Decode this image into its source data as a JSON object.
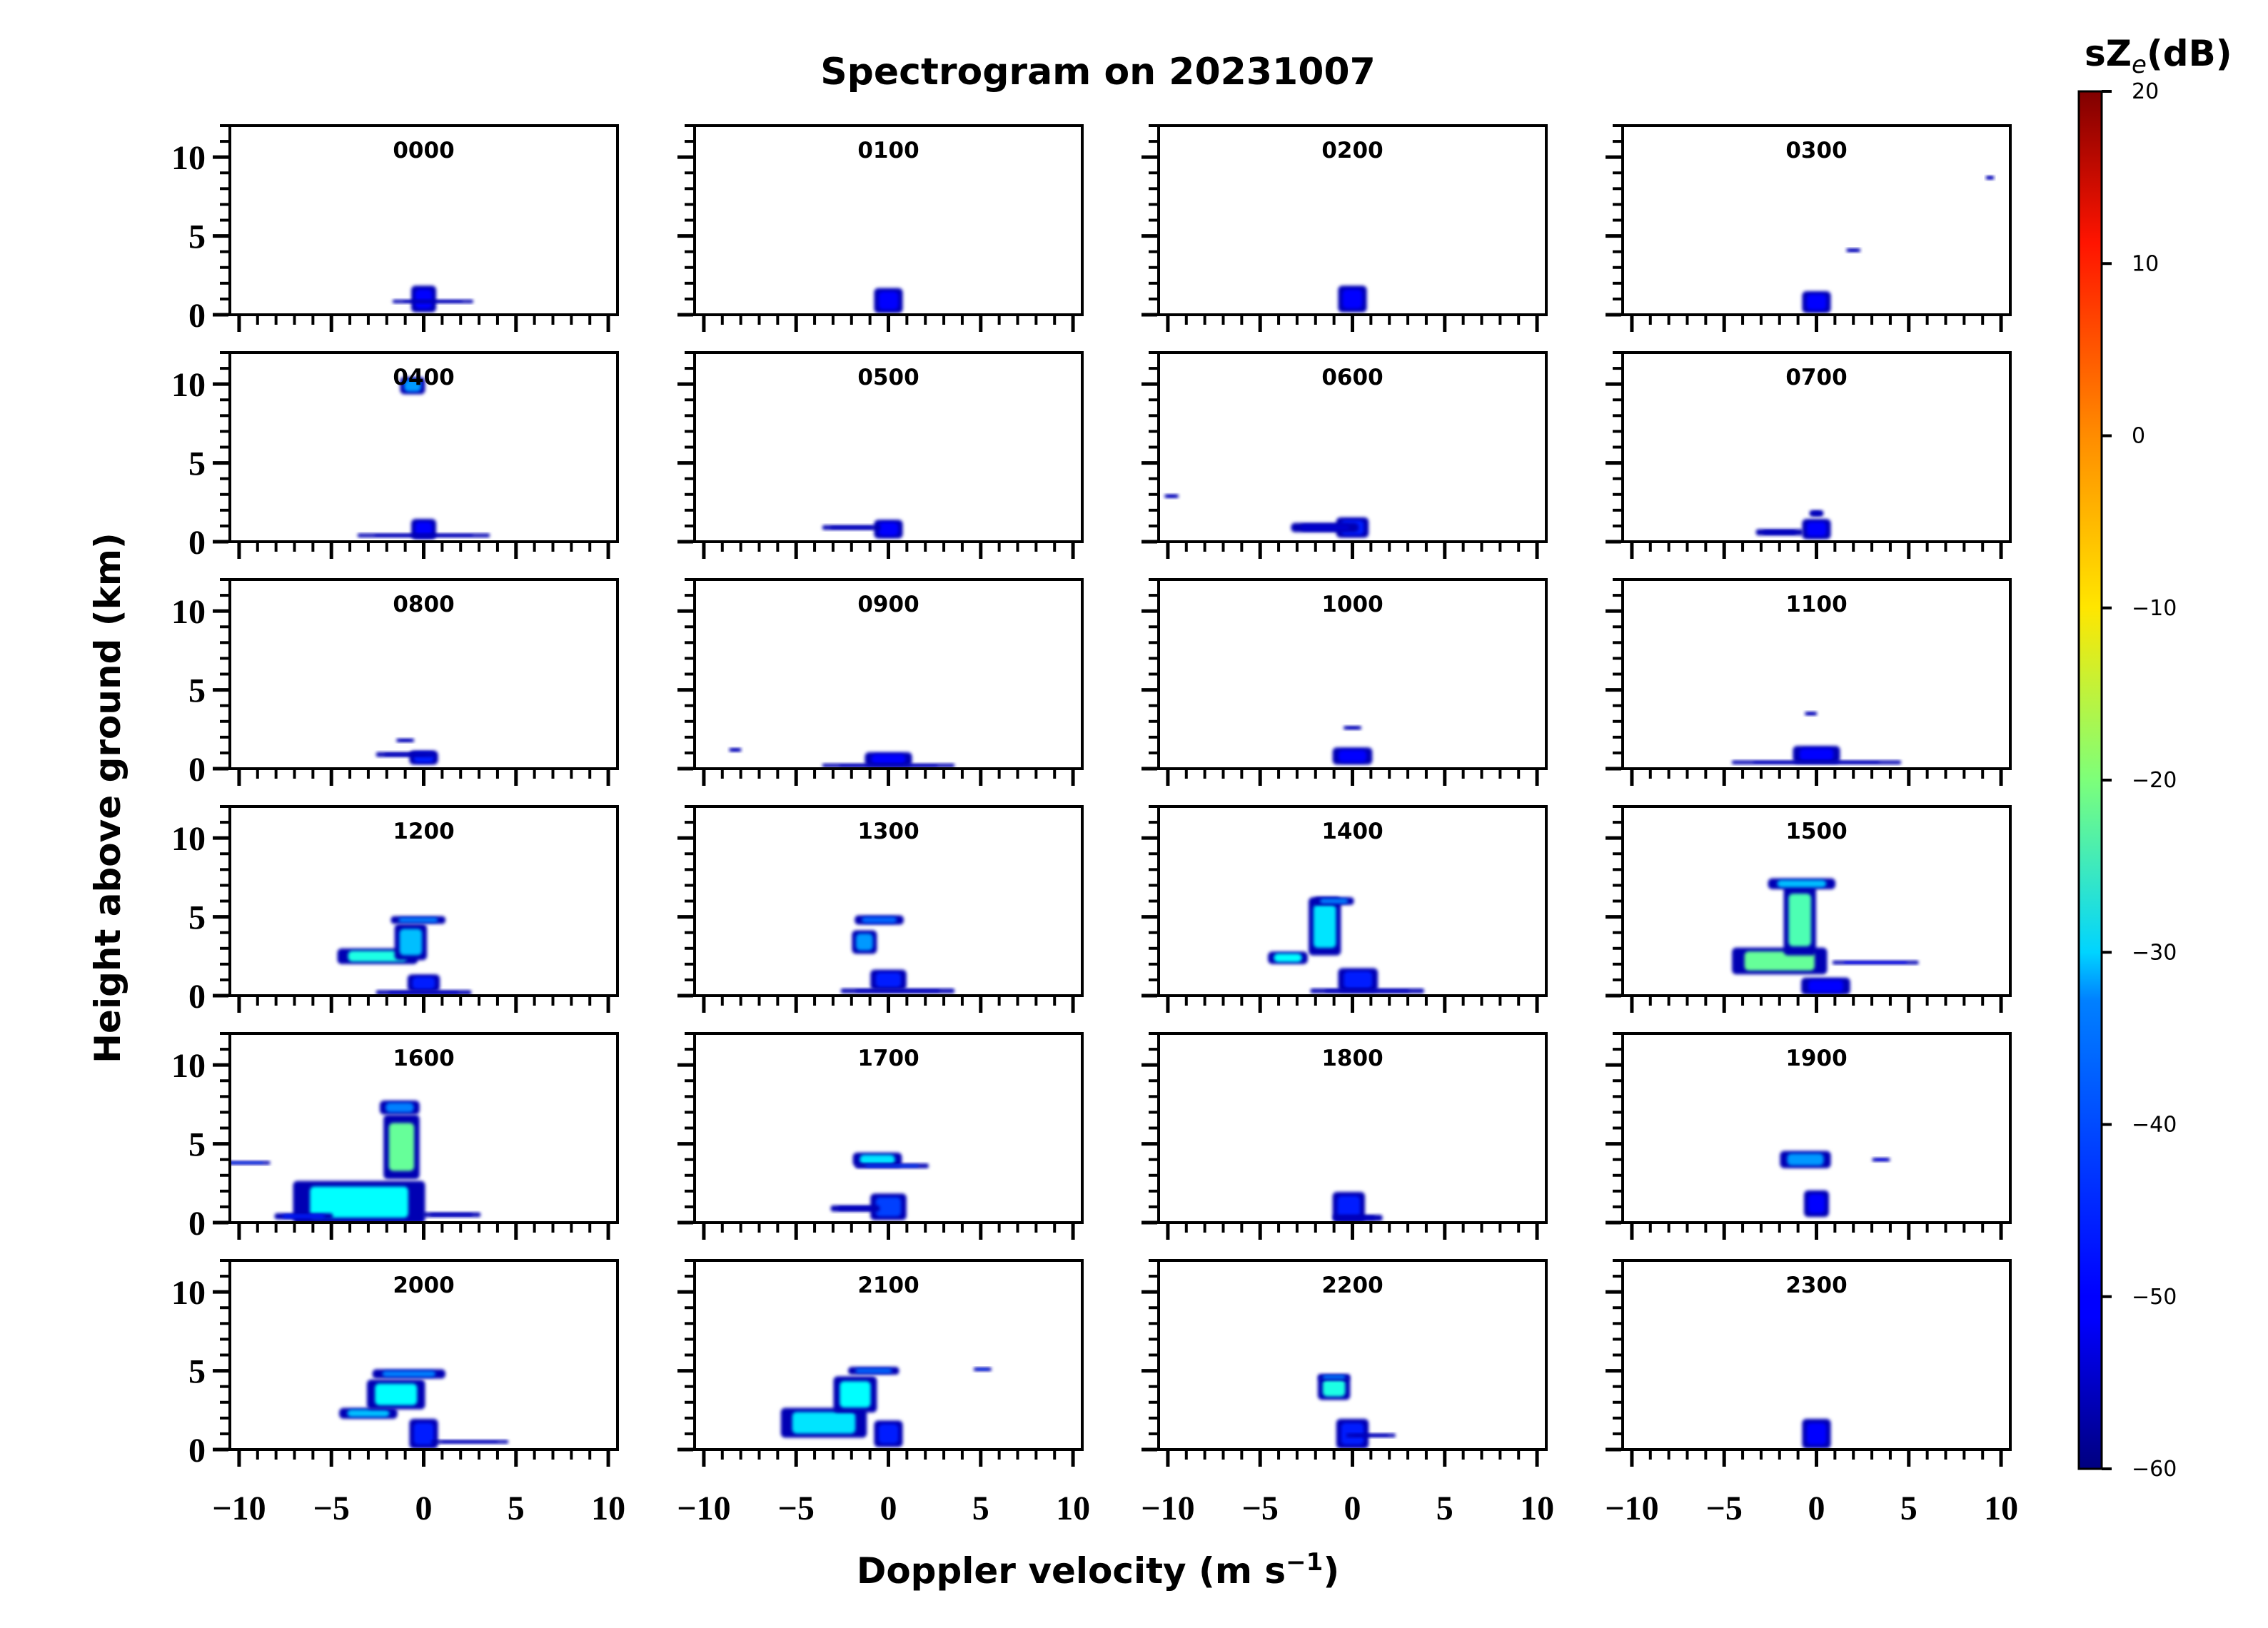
{
  "chart_data": {
    "type": "heatmap",
    "title": "Spectrogram on 20231007",
    "xlabel": "Doppler velocity (m s",
    "xlabel_exp": "−1",
    "xlabel_close": ")",
    "ylabel": "Height above ground (km)",
    "xlim": [
      -10.5,
      10.5
    ],
    "ylim": [
      0,
      12
    ],
    "x_ticks": [
      -10,
      -5,
      0,
      5,
      10
    ],
    "x_tick_labels": [
      "−10",
      "−5",
      "0",
      "5",
      "10"
    ],
    "y_ticks": [
      0,
      5,
      10
    ],
    "y_tick_labels": [
      "0",
      "5",
      "10"
    ],
    "colorbar": {
      "label_prefix": "sZ",
      "label_sub": "e",
      "label_suffix": "(dB)",
      "range": [
        -60,
        20
      ],
      "ticks": [
        20,
        10,
        0,
        -10,
        -20,
        -30,
        -40,
        -50,
        -60
      ],
      "tick_labels": [
        "20",
        "10",
        "0",
        "−10",
        "−20",
        "−30",
        "−40",
        "−50",
        "−60"
      ],
      "colormap": "jet"
    },
    "panels": [
      {
        "time": "0000",
        "blobs": [
          {
            "v": 0,
            "h": 1.0,
            "w": 1.2,
            "hh": 1.6,
            "db": -50
          },
          {
            "v": 0.5,
            "h": 0.85,
            "w": 4.2,
            "hh": 0.12,
            "db": -55
          }
        ]
      },
      {
        "time": "0100",
        "blobs": [
          {
            "v": 0,
            "h": 0.9,
            "w": 1.4,
            "hh": 1.5,
            "db": -50
          }
        ]
      },
      {
        "time": "0200",
        "blobs": [
          {
            "v": 0,
            "h": 1.0,
            "w": 1.4,
            "hh": 1.6,
            "db": -50
          }
        ]
      },
      {
        "time": "0300",
        "blobs": [
          {
            "v": 0,
            "h": 0.8,
            "w": 1.4,
            "hh": 1.3,
            "db": -50
          },
          {
            "v": 2.0,
            "h": 4.1,
            "w": 0.6,
            "hh": 0.12,
            "db": -55
          },
          {
            "v": 9.4,
            "h": 8.7,
            "w": 0.3,
            "hh": 0.12,
            "db": -55
          }
        ]
      },
      {
        "time": "0400",
        "blobs": [
          {
            "v": -0.6,
            "h": 9.9,
            "w": 1.2,
            "hh": 1.0,
            "db": -38
          },
          {
            "v": 0,
            "h": 0.8,
            "w": 1.2,
            "hh": 1.2,
            "db": -50
          },
          {
            "v": 0,
            "h": 0.4,
            "w": 7.0,
            "hh": 0.15,
            "db": -55
          }
        ]
      },
      {
        "time": "0500",
        "blobs": [
          {
            "v": 0,
            "h": 0.8,
            "w": 1.4,
            "hh": 1.1,
            "db": -50
          },
          {
            "v": -2.0,
            "h": 0.9,
            "w": 3.0,
            "hh": 0.2,
            "db": -55
          }
        ]
      },
      {
        "time": "0600",
        "blobs": [
          {
            "v": 0,
            "h": 0.9,
            "w": 1.6,
            "hh": 1.2,
            "db": -48
          },
          {
            "v": -1.5,
            "h": 0.9,
            "w": 3.5,
            "hh": 0.5,
            "db": -54
          },
          {
            "v": -9.8,
            "h": 2.9,
            "w": 0.6,
            "hh": 0.12,
            "db": -55
          }
        ]
      },
      {
        "time": "0700",
        "blobs": [
          {
            "v": 0,
            "h": 0.8,
            "w": 1.4,
            "hh": 1.2,
            "db": -50
          },
          {
            "v": 0,
            "h": 1.8,
            "w": 0.6,
            "hh": 0.3,
            "db": -55
          },
          {
            "v": -2.0,
            "h": 0.6,
            "w": 2.4,
            "hh": 0.3,
            "db": -55
          }
        ]
      },
      {
        "time": "0800",
        "blobs": [
          {
            "v": 0,
            "h": 0.7,
            "w": 1.4,
            "hh": 0.8,
            "db": -48
          },
          {
            "v": -1.0,
            "h": 0.9,
            "w": 3.0,
            "hh": 0.2,
            "db": -55
          },
          {
            "v": -1.0,
            "h": 1.8,
            "w": 0.8,
            "hh": 0.12,
            "db": -55
          }
        ]
      },
      {
        "time": "0900",
        "blobs": [
          {
            "v": 0,
            "h": 0.6,
            "w": 2.4,
            "hh": 0.8,
            "db": -50
          },
          {
            "v": 0,
            "h": 0.2,
            "w": 7.0,
            "hh": 0.15,
            "db": -55
          },
          {
            "v": -8.3,
            "h": 1.2,
            "w": 0.5,
            "hh": 0.12,
            "db": -55
          }
        ]
      },
      {
        "time": "1000",
        "blobs": [
          {
            "v": 0,
            "h": 0.8,
            "w": 2.0,
            "hh": 1.0,
            "db": -50
          },
          {
            "v": 0,
            "h": 2.6,
            "w": 0.8,
            "hh": 0.12,
            "db": -55
          }
        ]
      },
      {
        "time": "1100",
        "blobs": [
          {
            "v": 0,
            "h": 0.9,
            "w": 2.4,
            "hh": 1.0,
            "db": -50
          },
          {
            "v": 0,
            "h": 0.4,
            "w": 9.0,
            "hh": 0.15,
            "db": -55
          },
          {
            "v": -0.3,
            "h": 3.5,
            "w": 0.5,
            "hh": 0.12,
            "db": -55
          }
        ]
      },
      {
        "time": "1200",
        "blobs": [
          {
            "v": -2.5,
            "h": 2.5,
            "w": 4.2,
            "hh": 0.9,
            "db": -28
          },
          {
            "v": -0.7,
            "h": 3.4,
            "w": 1.6,
            "hh": 2.2,
            "db": -35
          },
          {
            "v": -0.3,
            "h": 4.8,
            "w": 2.8,
            "hh": 0.4,
            "db": -40
          },
          {
            "v": 0,
            "h": 0.8,
            "w": 1.6,
            "hh": 1.0,
            "db": -48
          },
          {
            "v": 0,
            "h": 0.2,
            "w": 5.0,
            "hh": 0.2,
            "db": -55
          }
        ]
      },
      {
        "time": "1300",
        "blobs": [
          {
            "v": -1.3,
            "h": 3.4,
            "w": 1.2,
            "hh": 1.4,
            "db": -38
          },
          {
            "v": -0.5,
            "h": 4.8,
            "w": 2.5,
            "hh": 0.5,
            "db": -42
          },
          {
            "v": 0,
            "h": 1.0,
            "w": 1.8,
            "hh": 1.2,
            "db": -48
          },
          {
            "v": 0.5,
            "h": 0.3,
            "w": 6.0,
            "hh": 0.2,
            "db": -55
          }
        ]
      },
      {
        "time": "1400",
        "blobs": [
          {
            "v": -3.5,
            "h": 2.4,
            "w": 2.0,
            "hh": 0.7,
            "db": -30
          },
          {
            "v": -1.5,
            "h": 4.4,
            "w": 1.6,
            "hh": 3.6,
            "db": -32
          },
          {
            "v": -1.0,
            "h": 6.0,
            "w": 2.0,
            "hh": 0.4,
            "db": -40
          },
          {
            "v": 0.3,
            "h": 1.0,
            "w": 2.0,
            "hh": 1.4,
            "db": -48
          },
          {
            "v": 0.8,
            "h": 0.3,
            "w": 6.0,
            "hh": 0.2,
            "db": -55
          }
        ]
      },
      {
        "time": "1500",
        "blobs": [
          {
            "v": -2.0,
            "h": 2.2,
            "w": 5.0,
            "hh": 1.6,
            "db": -22
          },
          {
            "v": -0.9,
            "h": 4.8,
            "w": 1.6,
            "hh": 4.4,
            "db": -24
          },
          {
            "v": -0.8,
            "h": 7.1,
            "w": 3.5,
            "hh": 0.6,
            "db": -35
          },
          {
            "v": 3.2,
            "h": 2.1,
            "w": 4.5,
            "hh": 0.15,
            "db": -50
          },
          {
            "v": 0.5,
            "h": 0.6,
            "w": 2.5,
            "hh": 1.0,
            "db": -50
          }
        ]
      },
      {
        "time": "1600",
        "blobs": [
          {
            "v": -3.5,
            "h": 1.3,
            "w": 7.0,
            "hh": 2.6,
            "db": -30
          },
          {
            "v": -1.2,
            "h": 4.8,
            "w": 1.8,
            "hh": 4.0,
            "db": -22
          },
          {
            "v": -1.3,
            "h": 7.3,
            "w": 2.0,
            "hh": 0.8,
            "db": -40
          },
          {
            "v": -9.6,
            "h": 3.8,
            "w": 2.4,
            "hh": 0.12,
            "db": -45
          },
          {
            "v": 1.5,
            "h": 0.5,
            "w": 3.0,
            "hh": 0.2,
            "db": -55
          },
          {
            "v": -6.5,
            "h": 0.4,
            "w": 3.0,
            "hh": 0.3,
            "db": -48
          }
        ]
      },
      {
        "time": "1700",
        "blobs": [
          {
            "v": -0.6,
            "h": 4.0,
            "w": 2.5,
            "hh": 0.8,
            "db": -32
          },
          {
            "v": 0.2,
            "h": 3.6,
            "w": 3.8,
            "hh": 0.2,
            "db": -45
          },
          {
            "v": 0,
            "h": 1.0,
            "w": 1.8,
            "hh": 1.6,
            "db": -45
          },
          {
            "v": -1.8,
            "h": 0.9,
            "w": 2.5,
            "hh": 0.3,
            "db": -55
          }
        ]
      },
      {
        "time": "1800",
        "blobs": [
          {
            "v": -0.2,
            "h": 1.0,
            "w": 1.6,
            "hh": 1.8,
            "db": -48
          },
          {
            "v": 0.3,
            "h": 0.3,
            "w": 2.5,
            "hh": 0.3,
            "db": -55
          }
        ]
      },
      {
        "time": "1900",
        "blobs": [
          {
            "v": -0.6,
            "h": 4.0,
            "w": 2.6,
            "hh": 1.0,
            "db": -38
          },
          {
            "v": 3.5,
            "h": 4.0,
            "w": 0.8,
            "hh": 0.12,
            "db": -50
          },
          {
            "v": 0,
            "h": 1.2,
            "w": 1.2,
            "hh": 1.6,
            "db": -50
          }
        ]
      },
      {
        "time": "2000",
        "blobs": [
          {
            "v": -3.0,
            "h": 2.3,
            "w": 3.0,
            "hh": 0.6,
            "db": -35
          },
          {
            "v": -1.5,
            "h": 3.5,
            "w": 3.0,
            "hh": 1.8,
            "db": -30
          },
          {
            "v": -0.8,
            "h": 4.8,
            "w": 3.8,
            "hh": 0.5,
            "db": -40
          },
          {
            "v": 0,
            "h": 1.0,
            "w": 1.4,
            "hh": 1.8,
            "db": -48
          },
          {
            "v": 2.5,
            "h": 0.5,
            "w": 4.0,
            "hh": 0.12,
            "db": -55
          }
        ]
      },
      {
        "time": "2100",
        "blobs": [
          {
            "v": -3.5,
            "h": 1.7,
            "w": 4.5,
            "hh": 1.8,
            "db": -32
          },
          {
            "v": -1.8,
            "h": 3.5,
            "w": 2.2,
            "hh": 2.2,
            "db": -30
          },
          {
            "v": -0.8,
            "h": 5.0,
            "w": 2.6,
            "hh": 0.4,
            "db": -42
          },
          {
            "v": 0,
            "h": 1.0,
            "w": 1.4,
            "hh": 1.6,
            "db": -48
          },
          {
            "v": 5.1,
            "h": 5.1,
            "w": 0.8,
            "hh": 0.12,
            "db": -45
          }
        ]
      },
      {
        "time": "2200",
        "blobs": [
          {
            "v": -1.0,
            "h": 3.9,
            "w": 1.6,
            "hh": 1.4,
            "db": -28
          },
          {
            "v": -1.0,
            "h": 4.6,
            "w": 1.6,
            "hh": 0.3,
            "db": -40
          },
          {
            "v": 0,
            "h": 1.0,
            "w": 1.6,
            "hh": 1.8,
            "db": -48
          },
          {
            "v": 1.0,
            "h": 0.9,
            "w": 2.5,
            "hh": 0.15,
            "db": -55
          }
        ]
      },
      {
        "time": "2300",
        "blobs": [
          {
            "v": 0,
            "h": 1.0,
            "w": 1.4,
            "hh": 1.8,
            "db": -50
          }
        ]
      }
    ]
  }
}
